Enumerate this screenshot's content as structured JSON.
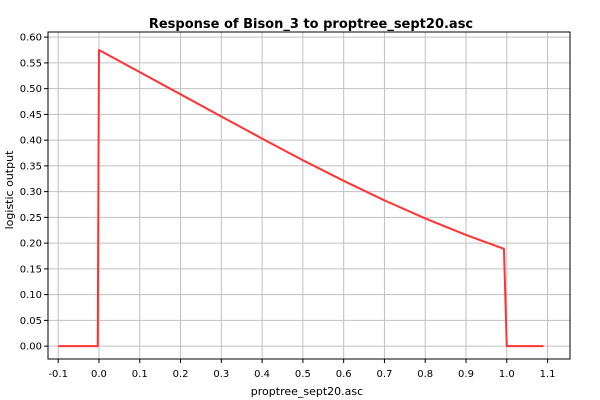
{
  "chart_data": {
    "type": "line",
    "title": "Response of Bison_3 to proptree_sept20.asc",
    "xlabel": "proptree_sept20.asc",
    "ylabel": "logistic output",
    "xlim": [
      -0.125,
      1.155
    ],
    "ylim": [
      -0.025,
      0.61
    ],
    "xticks": [
      "-0.1",
      "0.0",
      "0.1",
      "0.2",
      "0.3",
      "0.4",
      "0.5",
      "0.6",
      "0.7",
      "0.8",
      "0.9",
      "1.0",
      "1.1"
    ],
    "xtick_values": [
      -0.1,
      0.0,
      0.1,
      0.2,
      0.3,
      0.4,
      0.5,
      0.6,
      0.7,
      0.8,
      0.9,
      1.0,
      1.1
    ],
    "yticks": [
      "0.00",
      "0.05",
      "0.10",
      "0.15",
      "0.20",
      "0.25",
      "0.30",
      "0.35",
      "0.40",
      "0.45",
      "0.50",
      "0.55",
      "0.60"
    ],
    "ytick_values": [
      0.0,
      0.05,
      0.1,
      0.15,
      0.2,
      0.25,
      0.3,
      0.35,
      0.4,
      0.45,
      0.5,
      0.55,
      0.6
    ],
    "grid": true,
    "series": [
      {
        "color": "#ff3333",
        "x": [
          -0.1,
          -0.003,
          0.0,
          0.1,
          0.2,
          0.3,
          0.4,
          0.5,
          0.6,
          0.7,
          0.8,
          0.9,
          0.993,
          1.0,
          1.09
        ],
        "y": [
          0.0,
          0.0,
          0.575,
          0.532,
          0.489,
          0.446,
          0.403,
          0.361,
          0.321,
          0.283,
          0.248,
          0.216,
          0.189,
          0.0,
          0.0
        ]
      }
    ]
  }
}
